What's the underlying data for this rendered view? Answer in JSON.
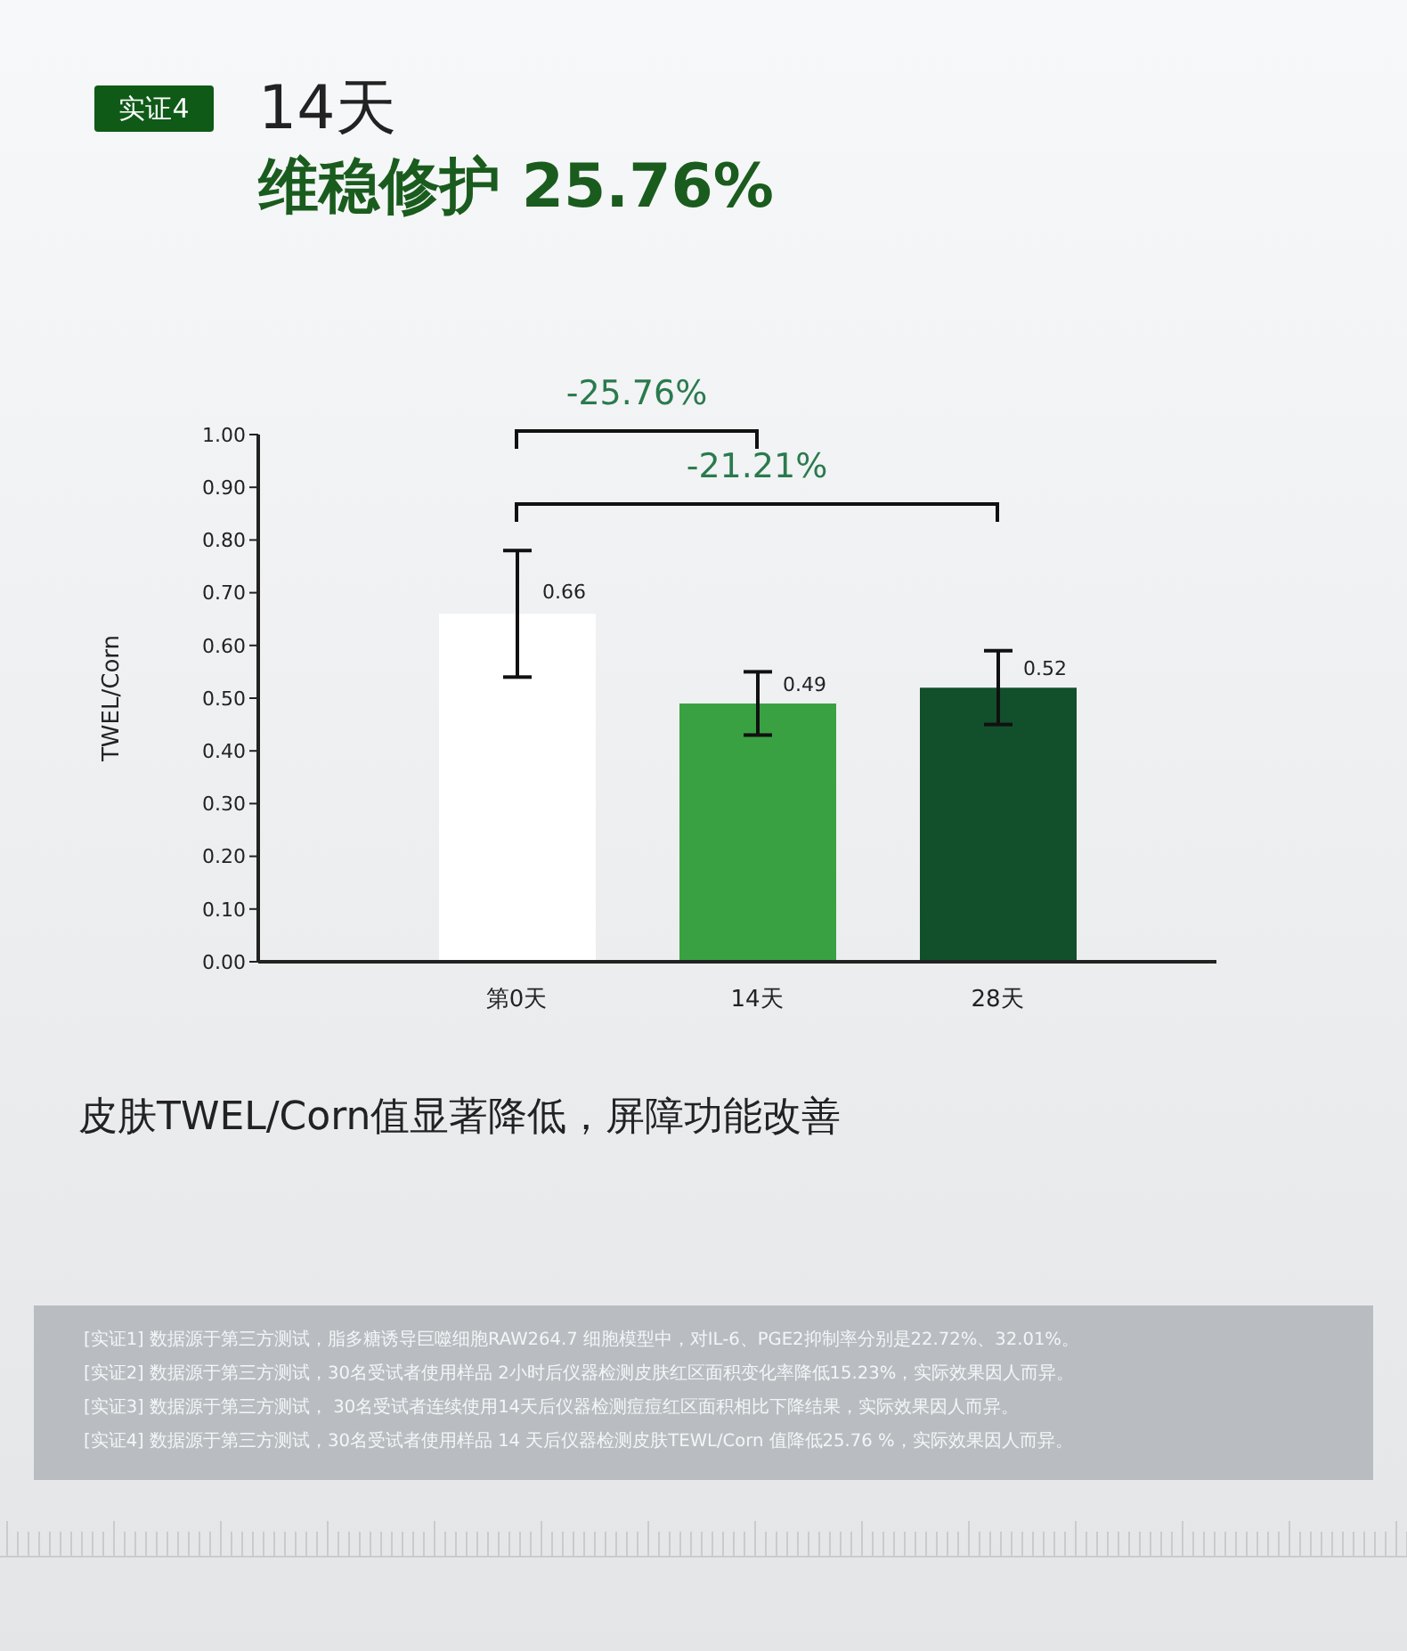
{
  "chart_data": {
    "type": "bar",
    "title": "14天",
    "subtitle": "维稳修护 25.76%",
    "ylabel": "TWEL/Corn",
    "categories": [
      "第0天",
      "14天",
      "28天"
    ],
    "values": [
      0.66,
      0.49,
      0.52
    ],
    "colors": [
      "#ffffff",
      "#3aa142",
      "#12502b"
    ],
    "errors": [
      0.12,
      0.06,
      0.07
    ],
    "data_labels": true,
    "ylim": [
      0,
      1
    ],
    "yticks": [
      {
        "value": 0,
        "label": "0.00"
      },
      {
        "value": 0.1,
        "label": "0.10"
      },
      {
        "value": 0.2,
        "label": "0.20"
      },
      {
        "value": 0.3,
        "label": "0.30"
      },
      {
        "value": 0.4,
        "label": "0.40"
      },
      {
        "value": 0.5,
        "label": "0.50"
      },
      {
        "value": 0.6,
        "label": "0.60"
      },
      {
        "value": 0.7,
        "label": "0.70"
      },
      {
        "value": 0.8,
        "label": "0.80"
      },
      {
        "value": 0.9,
        "label": "0.90"
      },
      {
        "value": 1,
        "label": "1.00"
      }
    ],
    "annotations": [
      "实证4",
      "-25.76%",
      "-21.21%",
      "皮肤TWEL/Corn值显著降低，屏障功能改善",
      "[实证1] 数据源于第三方测试，脂多糖诱导巨噬细胞RAW264.7 细胞模型中，对IL-6、PGE2抑制率分别是22.72%、32.01%。",
      "[实证2] 数据源于第三方测试，30名受试者使用样品 2小时后仪器检测皮肤红区面积变化率降低15.23%，实际效果因人而异。",
      "[实证3] 数据源于第三方测试， 30名受试者连续使用14天后仪器检测痘痘红区面积相比下降结果，实际效果因人而异。",
      "[实证4] 数据源于第三方测试，30名受试者使用样品 14 天后仪器检测皮肤TEWL/Corn 值降低25.76 %，实际效果因人而异。"
    ]
  }
}
